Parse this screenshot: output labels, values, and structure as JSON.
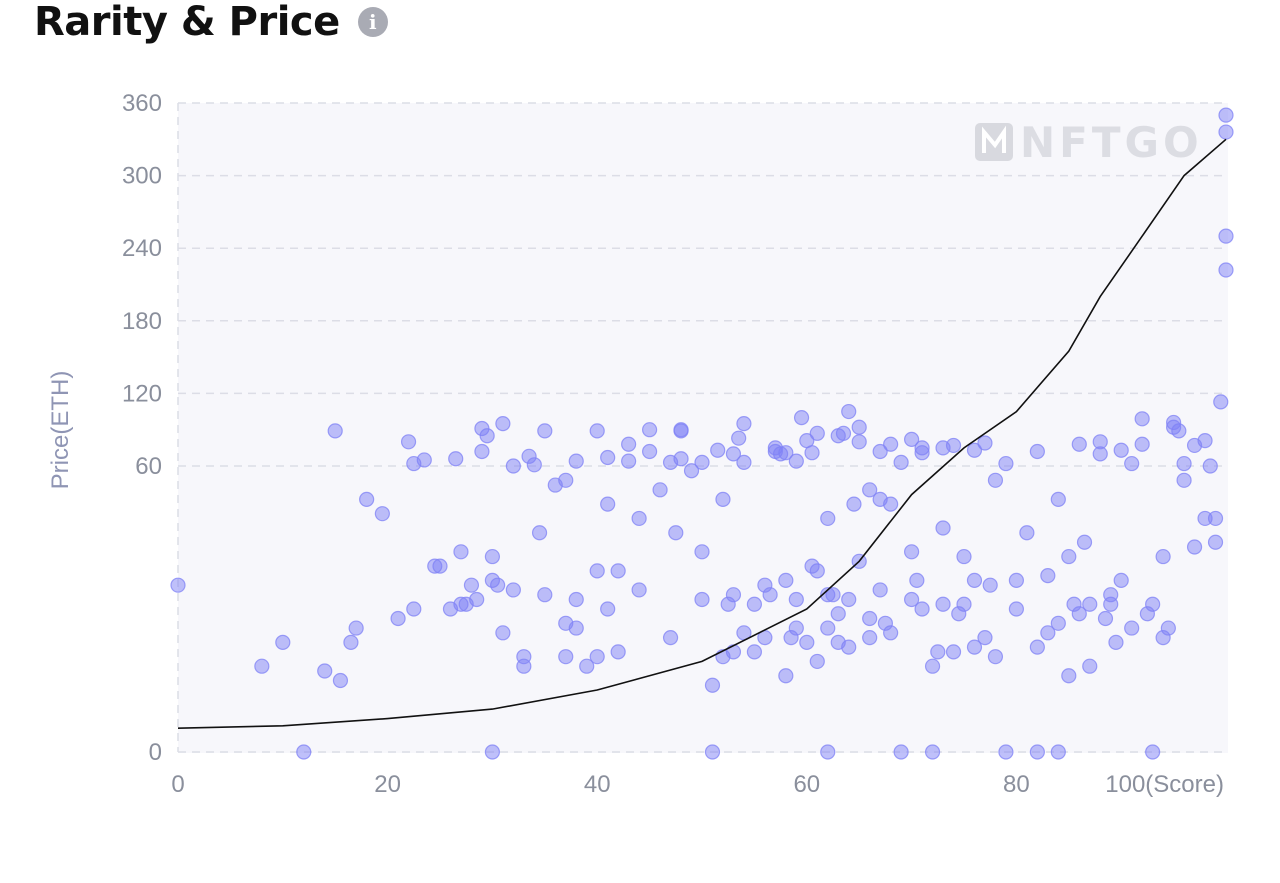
{
  "header": {
    "title": "Rarity & Price",
    "info_icon": "info-icon"
  },
  "watermark": {
    "text": "NFTGO",
    "icon": "nftgo-logo-icon"
  },
  "colors": {
    "point": "#7f82f5",
    "curve": "#111111",
    "plot_bg": "#f7f7fb",
    "grid": "#dcdde6"
  },
  "chart_data": {
    "type": "scatter",
    "title": "Rarity & Price",
    "xlabel": "(Score)",
    "ylabel": "Price(ETH)",
    "xlim": [
      0,
      100
    ],
    "ylim": [
      0,
      360
    ],
    "x_ticks": [
      {
        "value": 0,
        "label": "0"
      },
      {
        "value": 20,
        "label": "20"
      },
      {
        "value": 40,
        "label": "40"
      },
      {
        "value": 60,
        "label": "60"
      },
      {
        "value": 80,
        "label": "80"
      },
      {
        "value": 100,
        "label": "100(Score)"
      }
    ],
    "y_ticks": [
      {
        "value": 0,
        "label": "0"
      },
      {
        "value": 60,
        "label": "60"
      },
      {
        "value": 120,
        "label": "120"
      },
      {
        "value": 180,
        "label": "180"
      },
      {
        "value": 240,
        "label": "240"
      },
      {
        "value": 300,
        "label": "300"
      },
      {
        "value": 360,
        "label": "360"
      }
    ],
    "y_scale_note": "y axis compressed below 60 (non-linear lower segment)",
    "grid": true,
    "trend": {
      "type": "exponential",
      "points": [
        [
          0,
          5
        ],
        [
          10,
          5.5
        ],
        [
          20,
          7
        ],
        [
          30,
          9
        ],
        [
          40,
          13
        ],
        [
          50,
          19
        ],
        [
          60,
          30
        ],
        [
          65,
          40
        ],
        [
          70,
          54
        ],
        [
          75,
          75
        ],
        [
          80,
          105
        ],
        [
          85,
          155
        ],
        [
          88,
          200
        ],
        [
          92,
          250
        ],
        [
          96,
          300
        ],
        [
          100,
          330
        ]
      ]
    },
    "points": [
      [
        0,
        35
      ],
      [
        8,
        18
      ],
      [
        10,
        23
      ],
      [
        12,
        0
      ],
      [
        14,
        17
      ],
      [
        15,
        89
      ],
      [
        15.5,
        15
      ],
      [
        16.5,
        23
      ],
      [
        17,
        26
      ],
      [
        18,
        53
      ],
      [
        19.5,
        50
      ],
      [
        21,
        28
      ],
      [
        22,
        80
      ],
      [
        22.5,
        62
      ],
      [
        22.5,
        30
      ],
      [
        23.5,
        65
      ],
      [
        24.5,
        39
      ],
      [
        25,
        39
      ],
      [
        26,
        30
      ],
      [
        26.5,
        66
      ],
      [
        27,
        42
      ],
      [
        27,
        31
      ],
      [
        27.5,
        31
      ],
      [
        28,
        35
      ],
      [
        28.5,
        32
      ],
      [
        29,
        72
      ],
      [
        29,
        91
      ],
      [
        29.5,
        85
      ],
      [
        30,
        0
      ],
      [
        30,
        41
      ],
      [
        30,
        36
      ],
      [
        30.5,
        35
      ],
      [
        31,
        95
      ],
      [
        31,
        25
      ],
      [
        32,
        34
      ],
      [
        32,
        60
      ],
      [
        33,
        20
      ],
      [
        33,
        18
      ],
      [
        33.5,
        68
      ],
      [
        34,
        61
      ],
      [
        34.5,
        46
      ],
      [
        35,
        89
      ],
      [
        35,
        33
      ],
      [
        36,
        56
      ],
      [
        37,
        20
      ],
      [
        37,
        27
      ],
      [
        37,
        57
      ],
      [
        38,
        26
      ],
      [
        38,
        32
      ],
      [
        38,
        64
      ],
      [
        39,
        18
      ],
      [
        40,
        20
      ],
      [
        40,
        89
      ],
      [
        40,
        38
      ],
      [
        41,
        67
      ],
      [
        41,
        30
      ],
      [
        41,
        52
      ],
      [
        42,
        38
      ],
      [
        42,
        21
      ],
      [
        43,
        64
      ],
      [
        43,
        78
      ],
      [
        44,
        49
      ],
      [
        44,
        34
      ],
      [
        45,
        72
      ],
      [
        45,
        90
      ],
      [
        46,
        55
      ],
      [
        47,
        63
      ],
      [
        47,
        24
      ],
      [
        47.5,
        46
      ],
      [
        48,
        66
      ],
      [
        48,
        90
      ],
      [
        48,
        89
      ],
      [
        49,
        59
      ],
      [
        50,
        63
      ],
      [
        50,
        42
      ],
      [
        50,
        32
      ],
      [
        51,
        0
      ],
      [
        51,
        14
      ],
      [
        51.5,
        73
      ],
      [
        52,
        53
      ],
      [
        52,
        20
      ],
      [
        52.5,
        31
      ],
      [
        53,
        33
      ],
      [
        53,
        21
      ],
      [
        53,
        70
      ],
      [
        53.5,
        83
      ],
      [
        54,
        63
      ],
      [
        54,
        95
      ],
      [
        54,
        25
      ],
      [
        55,
        31
      ],
      [
        55,
        21
      ],
      [
        56,
        35
      ],
      [
        56,
        24
      ],
      [
        56.5,
        33
      ],
      [
        57,
        75
      ],
      [
        57,
        72
      ],
      [
        57.5,
        70
      ],
      [
        58,
        71
      ],
      [
        58,
        16
      ],
      [
        58,
        36
      ],
      [
        58.5,
        24
      ],
      [
        59,
        64
      ],
      [
        59,
        32
      ],
      [
        59,
        26
      ],
      [
        59.5,
        100
      ],
      [
        60,
        81
      ],
      [
        60,
        23
      ],
      [
        60.5,
        71
      ],
      [
        60.5,
        39
      ],
      [
        61,
        87
      ],
      [
        61,
        19
      ],
      [
        61,
        38
      ],
      [
        62,
        49
      ],
      [
        62,
        0
      ],
      [
        62,
        26
      ],
      [
        62,
        33
      ],
      [
        62.5,
        33
      ],
      [
        63,
        85
      ],
      [
        63,
        29
      ],
      [
        63,
        23
      ],
      [
        63.5,
        87
      ],
      [
        64,
        105
      ],
      [
        64,
        22
      ],
      [
        64,
        32
      ],
      [
        64.5,
        52
      ],
      [
        65,
        80
      ],
      [
        65,
        92
      ],
      [
        65,
        40
      ],
      [
        66,
        55
      ],
      [
        66,
        28
      ],
      [
        66,
        24
      ],
      [
        67,
        72
      ],
      [
        67,
        53
      ],
      [
        67,
        34
      ],
      [
        67.5,
        27
      ],
      [
        68,
        78
      ],
      [
        68,
        25
      ],
      [
        68,
        52
      ],
      [
        69,
        0
      ],
      [
        69,
        63
      ],
      [
        70,
        82
      ],
      [
        70,
        42
      ],
      [
        70,
        32
      ],
      [
        70.5,
        36
      ],
      [
        71,
        71
      ],
      [
        71,
        75
      ],
      [
        71,
        30
      ],
      [
        72,
        0
      ],
      [
        72,
        18
      ],
      [
        72.5,
        21
      ],
      [
        73,
        75
      ],
      [
        73,
        31
      ],
      [
        73,
        47
      ],
      [
        74,
        77
      ],
      [
        74,
        21
      ],
      [
        74.5,
        29
      ],
      [
        75,
        31
      ],
      [
        75,
        41
      ],
      [
        76,
        73
      ],
      [
        76,
        22
      ],
      [
        76,
        36
      ],
      [
        77,
        79
      ],
      [
        77,
        24
      ],
      [
        77.5,
        35
      ],
      [
        78,
        57
      ],
      [
        78,
        20
      ],
      [
        79,
        0
      ],
      [
        79,
        62
      ],
      [
        80,
        30
      ],
      [
        80,
        36
      ],
      [
        81,
        46
      ],
      [
        82,
        0
      ],
      [
        82,
        72
      ],
      [
        82,
        22
      ],
      [
        83,
        37
      ],
      [
        83,
        25
      ],
      [
        84,
        0
      ],
      [
        84,
        53
      ],
      [
        84,
        27
      ],
      [
        85,
        41
      ],
      [
        85,
        16
      ],
      [
        85.5,
        31
      ],
      [
        86,
        78
      ],
      [
        86,
        29
      ],
      [
        86.5,
        44
      ],
      [
        87,
        18
      ],
      [
        87,
        31
      ],
      [
        88,
        80
      ],
      [
        88,
        70
      ],
      [
        88.5,
        28
      ],
      [
        89,
        31
      ],
      [
        89,
        33
      ],
      [
        89.5,
        23
      ],
      [
        90,
        73
      ],
      [
        90,
        36
      ],
      [
        91,
        62
      ],
      [
        91,
        26
      ],
      [
        92,
        99
      ],
      [
        92,
        78
      ],
      [
        92.5,
        29
      ],
      [
        93,
        31
      ],
      [
        93,
        0
      ],
      [
        94,
        24
      ],
      [
        94,
        41
      ],
      [
        94.5,
        26
      ],
      [
        95,
        92
      ],
      [
        95,
        96
      ],
      [
        95.5,
        89
      ],
      [
        96,
        62
      ],
      [
        96,
        57
      ],
      [
        97,
        43
      ],
      [
        97,
        77
      ],
      [
        98,
        49
      ],
      [
        98,
        81
      ],
      [
        98.5,
        60
      ],
      [
        99,
        49
      ],
      [
        99,
        44
      ],
      [
        99.5,
        113
      ],
      [
        100,
        350
      ],
      [
        100,
        336
      ],
      [
        100,
        250
      ],
      [
        100,
        222
      ]
    ]
  }
}
